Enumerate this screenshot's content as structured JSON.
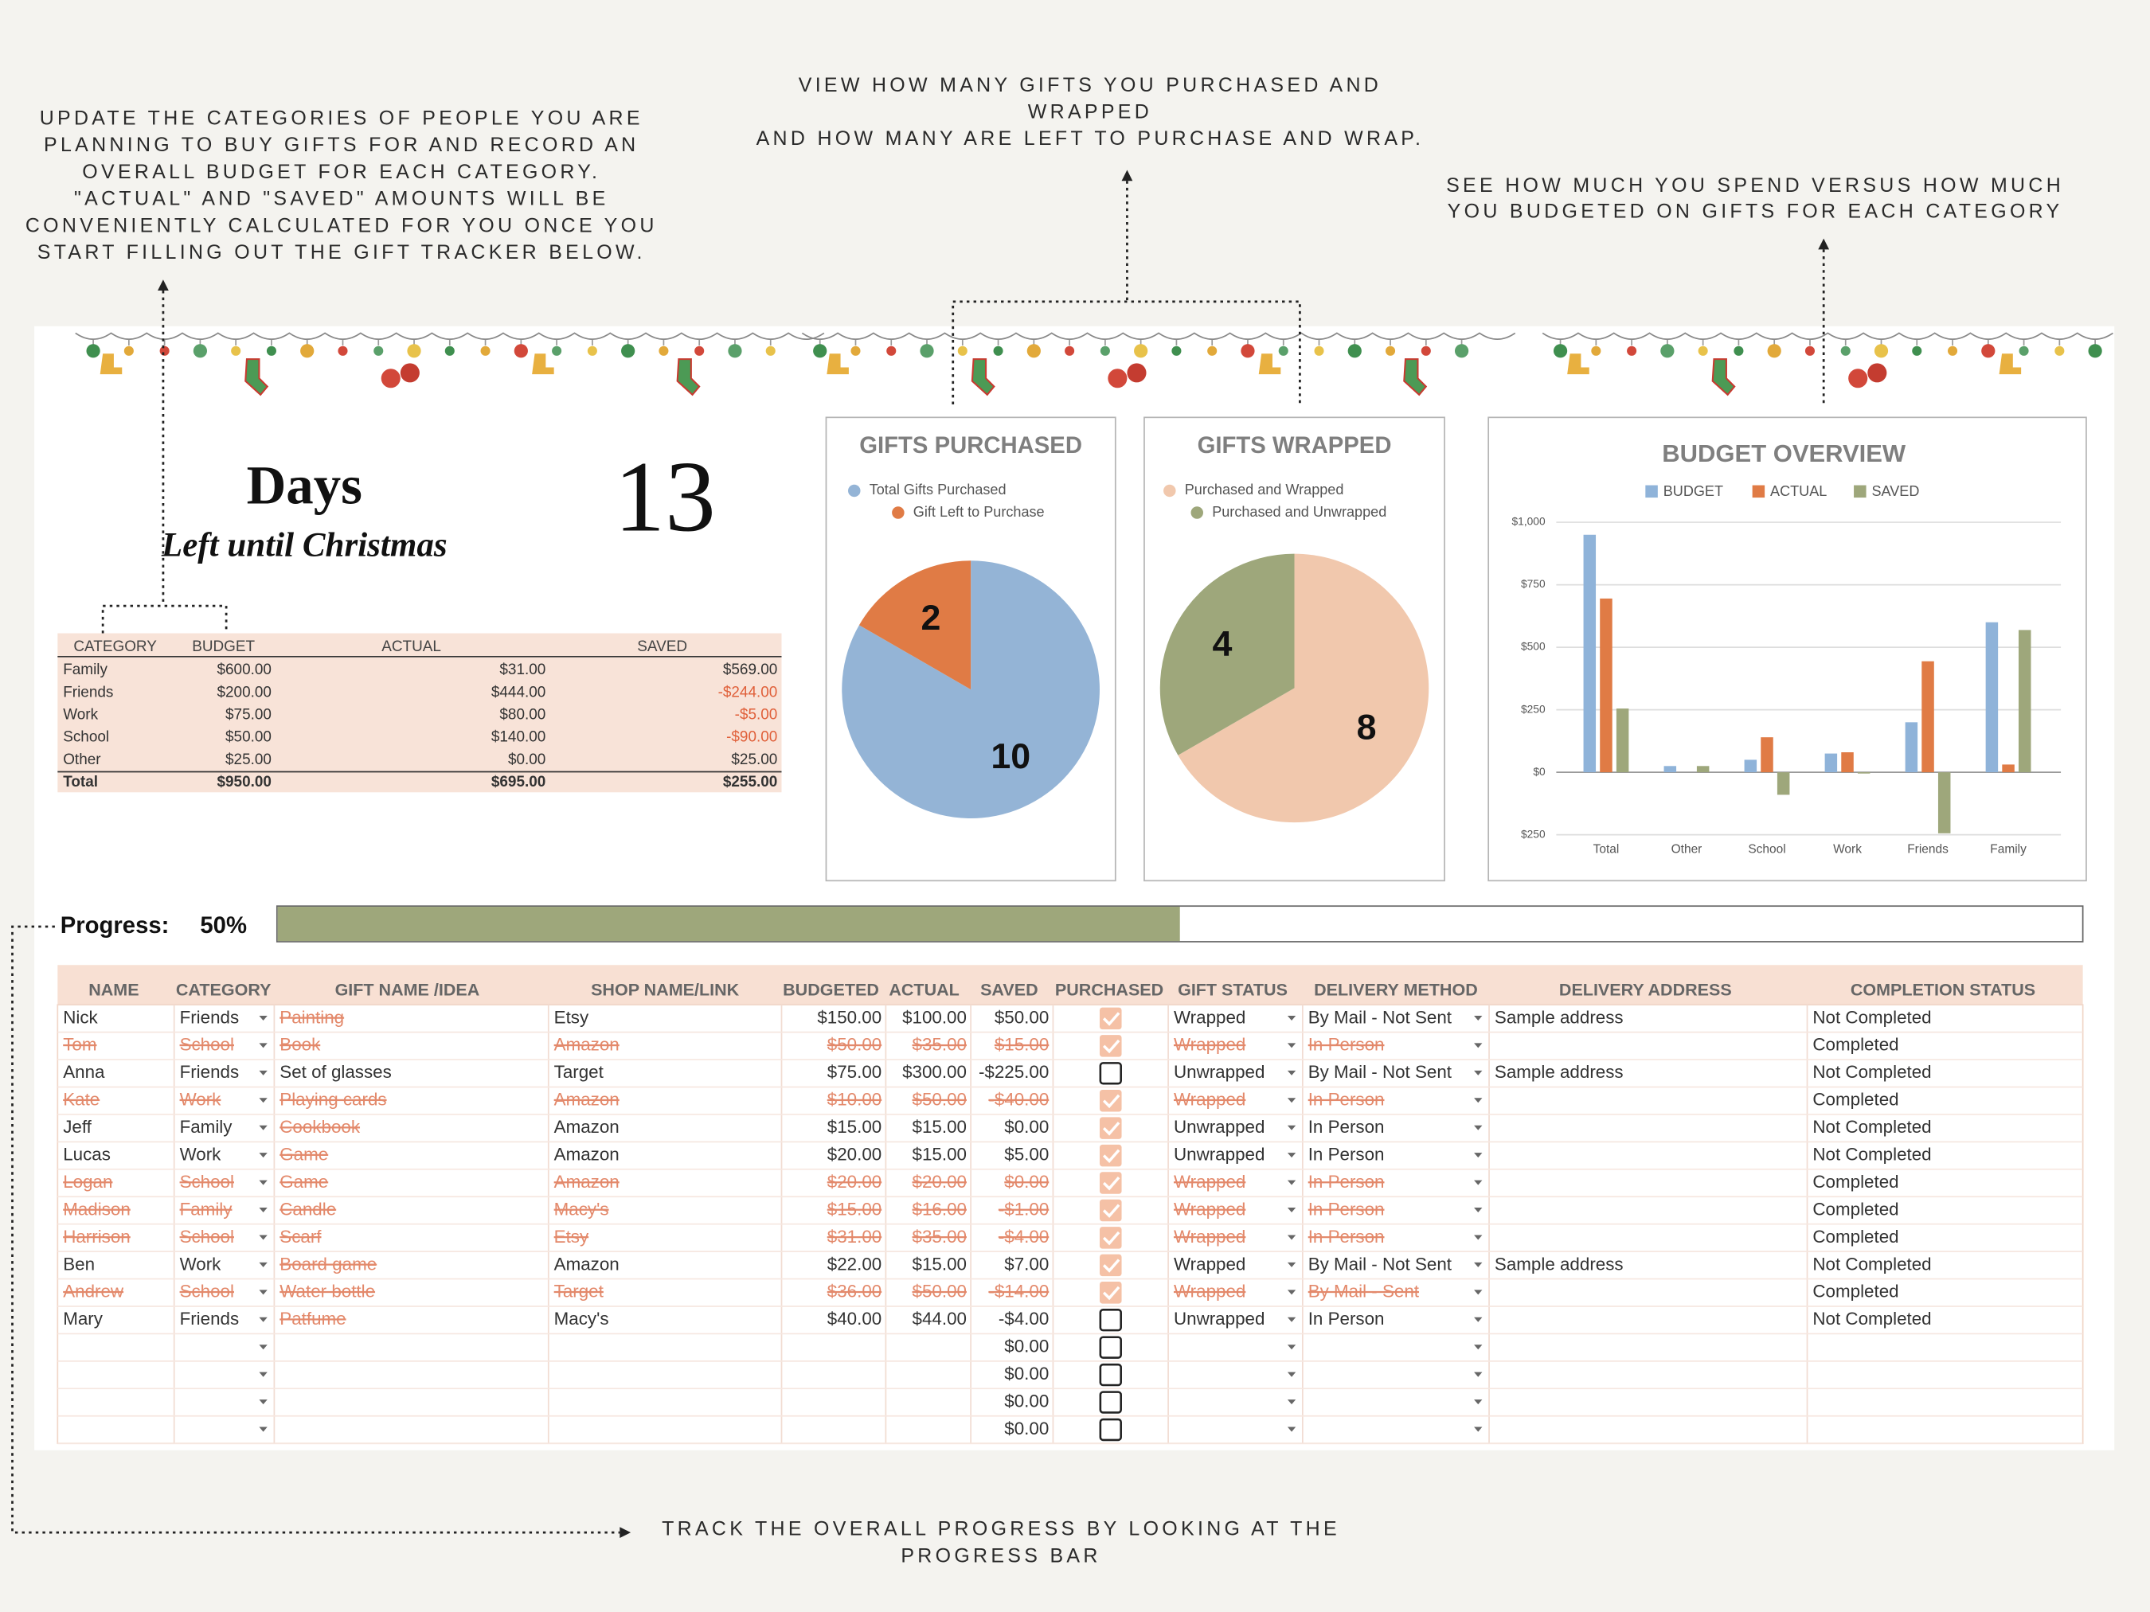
{
  "annotations": [
    {
      "lines": [
        "UPDATE THE CATEGORIES OF PEOPLE YOU ARE",
        "PLANNING TO BUY GIFTS FOR AND RECORD AN",
        "OVERALL BUDGET FOR EACH CATEGORY.",
        "\"ACTUAL\" AND \"SAVED\" AMOUNTS WILL BE",
        "CONVENIENTLY CALCULATED FOR YOU ONCE YOU",
        "START FILLING OUT THE GIFT TRACKER BELOW."
      ]
    },
    {
      "lines": [
        "VIEW HOW MANY GIFTS YOU PURCHASED AND",
        "WRAPPED",
        "AND HOW MANY ARE LEFT TO PURCHASE AND WRAP."
      ]
    },
    {
      "lines": [
        "SEE HOW MUCH YOU SPEND VERSUS HOW MUCH",
        "YOU BUDGETED ON GIFTS FOR EACH CATEGORY"
      ]
    },
    {
      "lines": [
        "TRACK THE OVERALL PROGRESS BY LOOKING AT THE",
        "PROGRESS BAR"
      ]
    }
  ],
  "countdown": {
    "label": "Days",
    "sublabel": "Left until Christmas",
    "value": 13
  },
  "summary": {
    "headers": [
      "CATEGORY",
      "BUDGET",
      "ACTUAL",
      "SAVED"
    ],
    "rows": [
      [
        "Family",
        "$600.00",
        "$31.00",
        "$569.00"
      ],
      [
        "Friends",
        "$200.00",
        "$444.00",
        "-$244.00"
      ],
      [
        "Work",
        "$75.00",
        "$80.00",
        "-$5.00"
      ],
      [
        "School",
        "$50.00",
        "$140.00",
        "-$90.00"
      ],
      [
        "Other",
        "$25.00",
        "$0.00",
        "$25.00"
      ]
    ],
    "total": [
      "Total",
      "$950.00",
      "$695.00",
      "$255.00"
    ]
  },
  "chart_data": [
    {
      "type": "pie",
      "title": "GIFTS PURCHASED",
      "categories": [
        "Total Gifts Purchased",
        "Gift Left to Purchase"
      ],
      "values": [
        10,
        2
      ],
      "colors": [
        "#94b4d6",
        "#e07b45"
      ]
    },
    {
      "type": "pie",
      "title": "GIFTS WRAPPED",
      "categories": [
        "Purchased and Wrapped",
        "Purchased and Unwrapped"
      ],
      "values": [
        8,
        4
      ],
      "colors": [
        "#f1c8ad",
        "#9ea77b"
      ]
    },
    {
      "type": "bar",
      "title": "BUDGET OVERVIEW",
      "categories": [
        "Total",
        "Other",
        "School",
        "Work",
        "Friends",
        "Family"
      ],
      "series": [
        {
          "name": "BUDGET",
          "color": "#8fb3d9",
          "values": [
            950,
            25,
            50,
            75,
            200,
            600
          ]
        },
        {
          "name": "ACTUAL",
          "color": "#e07b45",
          "values": [
            695,
            0,
            140,
            80,
            444,
            31
          ]
        },
        {
          "name": "SAVED",
          "color": "#9ea77b",
          "values": [
            255,
            25,
            -90,
            -5,
            -244,
            569
          ]
        }
      ],
      "ylim": [
        -250,
        1000
      ],
      "yticks": [
        {
          "value": 1000,
          "label": "$1,000"
        },
        {
          "value": 750,
          "label": "$750"
        },
        {
          "value": 500,
          "label": "$500"
        },
        {
          "value": 250,
          "label": "$250"
        },
        {
          "value": 0,
          "label": "$0"
        },
        {
          "value": -250,
          "label": "$250"
        }
      ],
      "grid": true
    }
  ],
  "progress": {
    "label": "Progress:",
    "value": 50,
    "value_label": "50%",
    "range": [
      0,
      100
    ]
  },
  "tracker": {
    "headers": [
      "NAME",
      "CATEGORY",
      "GIFT NAME /IDEA",
      "SHOP NAME/LINK",
      "BUDGETED",
      "ACTUAL",
      "SAVED",
      "PURCHASED",
      "GIFT STATUS",
      "DELIVERY METHOD",
      "DELIVERY ADDRESS",
      "COMPLETION STATUS"
    ],
    "rows": [
      {
        "cells": [
          "Nick",
          "Friends",
          "Painting",
          "Etsy",
          "$150.00",
          "$100.00",
          "$50.00",
          null,
          "Wrapped",
          "By Mail - Not Sent",
          "Sample address",
          "Not Completed"
        ],
        "purchased": true,
        "gift_struck": true
      },
      {
        "cells": [
          "Tom",
          "School",
          "Book",
          "Amazon",
          "$50.00",
          "$35.00",
          "$15.00",
          null,
          "Wrapped",
          "In Person",
          null,
          "Completed"
        ],
        "purchased": true,
        "row_struck": true
      },
      {
        "cells": [
          "Anna",
          "Friends",
          "Set of glasses",
          "Target",
          "$75.00",
          "$300.00",
          "-$225.00",
          null,
          "Unwrapped",
          "By Mail - Not Sent",
          "Sample address",
          "Not Completed"
        ],
        "purchased": false
      },
      {
        "cells": [
          "Kate",
          "Work",
          "Playing cards",
          "Amazon",
          "$10.00",
          "$50.00",
          "-$40.00",
          null,
          "Wrapped",
          "In Person",
          null,
          "Completed"
        ],
        "purchased": true,
        "row_struck": true
      },
      {
        "cells": [
          "Jeff",
          "Family",
          "Cookbook",
          "Amazon",
          "$15.00",
          "$15.00",
          "$0.00",
          null,
          "Unwrapped",
          "In Person",
          null,
          "Not Completed"
        ],
        "purchased": true,
        "gift_struck": true
      },
      {
        "cells": [
          "Lucas",
          "Work",
          "Game",
          "Amazon",
          "$20.00",
          "$15.00",
          "$5.00",
          null,
          "Unwrapped",
          "In Person",
          null,
          "Not Completed"
        ],
        "purchased": true,
        "gift_struck": true
      },
      {
        "cells": [
          "Logan",
          "School",
          "Game",
          "Amazon",
          "$20.00",
          "$20.00",
          "$0.00",
          null,
          "Wrapped",
          "In Person",
          null,
          "Completed"
        ],
        "purchased": true,
        "row_struck": true
      },
      {
        "cells": [
          "Madison",
          "Family",
          "Candle",
          "Macy's",
          "$15.00",
          "$16.00",
          "-$1.00",
          null,
          "Wrapped",
          "In Person",
          null,
          "Completed"
        ],
        "purchased": true,
        "row_struck": true
      },
      {
        "cells": [
          "Harrison",
          "School",
          "Scarf",
          "Etsy",
          "$31.00",
          "$35.00",
          "-$4.00",
          null,
          "Wrapped",
          "In Person",
          null,
          "Completed"
        ],
        "purchased": true,
        "row_struck": true
      },
      {
        "cells": [
          "Ben",
          "Work",
          "Board game",
          "Amazon",
          "$22.00",
          "$15.00",
          "$7.00",
          null,
          "Wrapped",
          "By Mail - Not Sent",
          "Sample address",
          "Not Completed"
        ],
        "purchased": true,
        "gift_struck": true
      },
      {
        "cells": [
          "Andrew",
          "School",
          "Water bottle",
          "Target",
          "$36.00",
          "$50.00",
          "-$14.00",
          null,
          "Wrapped",
          "By Mail - Sent",
          null,
          "Completed"
        ],
        "purchased": true,
        "row_struck": true
      },
      {
        "cells": [
          "Mary",
          "Friends",
          "Patfume",
          "Macy's",
          "$40.00",
          "$44.00",
          "-$4.00",
          null,
          "Unwrapped",
          "In Person",
          null,
          "Not Completed"
        ],
        "purchased": false,
        "gift_struck": true
      },
      {
        "cells": [
          null,
          null,
          null,
          null,
          null,
          null,
          "$0.00",
          null,
          null,
          null,
          null,
          null
        ],
        "purchased": false
      },
      {
        "cells": [
          null,
          null,
          null,
          null,
          null,
          null,
          "$0.00",
          null,
          null,
          null,
          null,
          null
        ],
        "purchased": false
      },
      {
        "cells": [
          null,
          null,
          null,
          null,
          null,
          null,
          "$0.00",
          null,
          null,
          null,
          null,
          null
        ],
        "purchased": false
      },
      {
        "cells": [
          null,
          null,
          null,
          null,
          null,
          null,
          "$0.00",
          null,
          null,
          null,
          null,
          null
        ],
        "purchased": false
      }
    ]
  }
}
